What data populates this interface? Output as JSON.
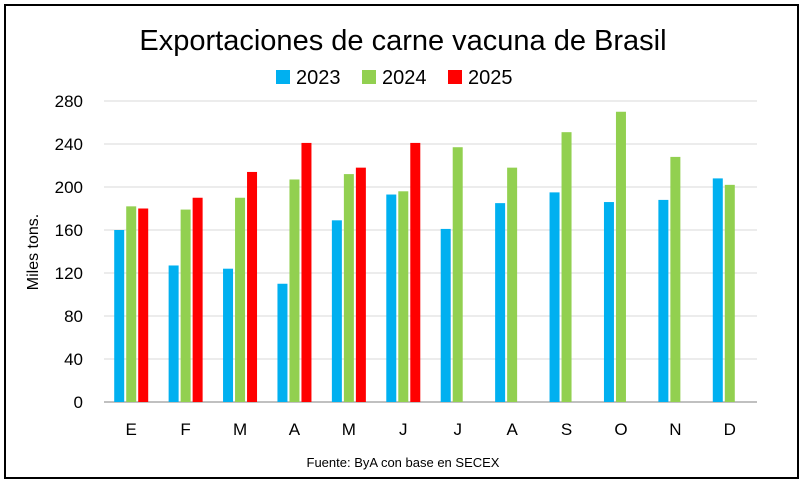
{
  "chart_data": {
    "type": "bar",
    "title": "Exportaciones de carne vacuna de Brasil",
    "ylabel": "Miles tons.",
    "xlabel": "",
    "source": "Fuente: ByA con base en SECEX",
    "categories": [
      "E",
      "F",
      "M",
      "A",
      "M",
      "J",
      "J",
      "A",
      "S",
      "O",
      "N",
      "D"
    ],
    "yticks": [
      "0",
      "40",
      "80",
      "120",
      "160",
      "200",
      "240",
      "280"
    ],
    "ylim": [
      0,
      280
    ],
    "grid": true,
    "legend_position": "top",
    "series": [
      {
        "name": "2023",
        "color": "#00B0F0",
        "values": [
          160,
          127,
          124,
          110,
          169,
          193,
          161,
          185,
          195,
          186,
          188,
          208
        ]
      },
      {
        "name": "2024",
        "color": "#92D050",
        "values": [
          182,
          179,
          190,
          207,
          212,
          196,
          237,
          218,
          251,
          270,
          228,
          202
        ]
      },
      {
        "name": "2025",
        "color": "#FF0000",
        "values": [
          180,
          190,
          214,
          241,
          218,
          241,
          null,
          null,
          null,
          null,
          null,
          null
        ]
      }
    ]
  }
}
